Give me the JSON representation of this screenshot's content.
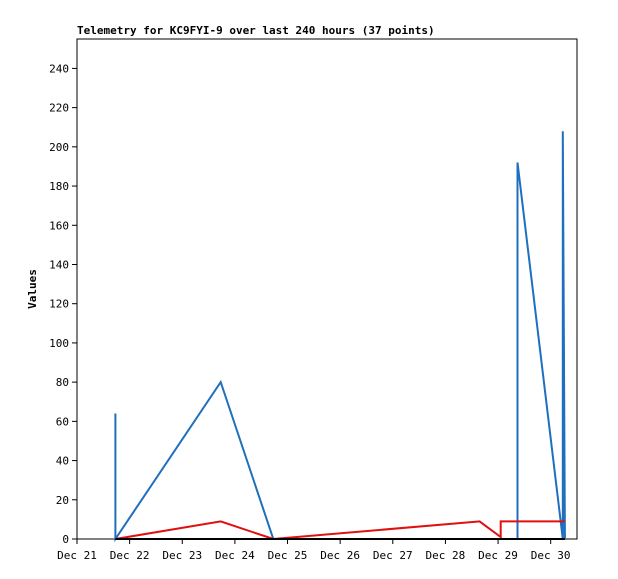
{
  "chart_data": {
    "type": "line",
    "title": "Telemetry for KC9FYI-9 over last 240 hours (37 points)",
    "xlabel": "",
    "ylabel": "Values",
    "ylim": [
      0,
      255
    ],
    "xlim": [
      0,
      9.5
    ],
    "yticks": [
      0,
      20,
      40,
      60,
      80,
      100,
      120,
      140,
      160,
      180,
      200,
      220,
      240
    ],
    "xtick_labels": [
      "Dec 21",
      "Dec 22",
      "Dec 23",
      "Dec 24",
      "Dec 25",
      "Dec 26",
      "Dec 27",
      "Dec 28",
      "Dec 29",
      "Dec 30"
    ],
    "grid": false,
    "x_units": "days after Dec 21",
    "series": [
      {
        "color": "#1f6fbf",
        "points": [
          [
            0.73,
            64
          ],
          [
            0.73,
            0
          ],
          [
            2.73,
            80
          ],
          [
            3.73,
            0
          ],
          [
            8.37,
            0
          ],
          [
            8.37,
            192
          ],
          [
            9.23,
            0
          ],
          [
            9.23,
            208
          ],
          [
            9.27,
            0
          ]
        ]
      },
      {
        "color": "#e01010",
        "points": [
          [
            0.73,
            0
          ],
          [
            2.73,
            9
          ],
          [
            3.73,
            0
          ],
          [
            7.65,
            9
          ],
          [
            8.05,
            1
          ],
          [
            8.05,
            9
          ],
          [
            9.27,
            9
          ]
        ]
      },
      {
        "color": "#000000",
        "points": [
          [
            0.73,
            0
          ],
          [
            9.27,
            0
          ]
        ]
      }
    ]
  }
}
